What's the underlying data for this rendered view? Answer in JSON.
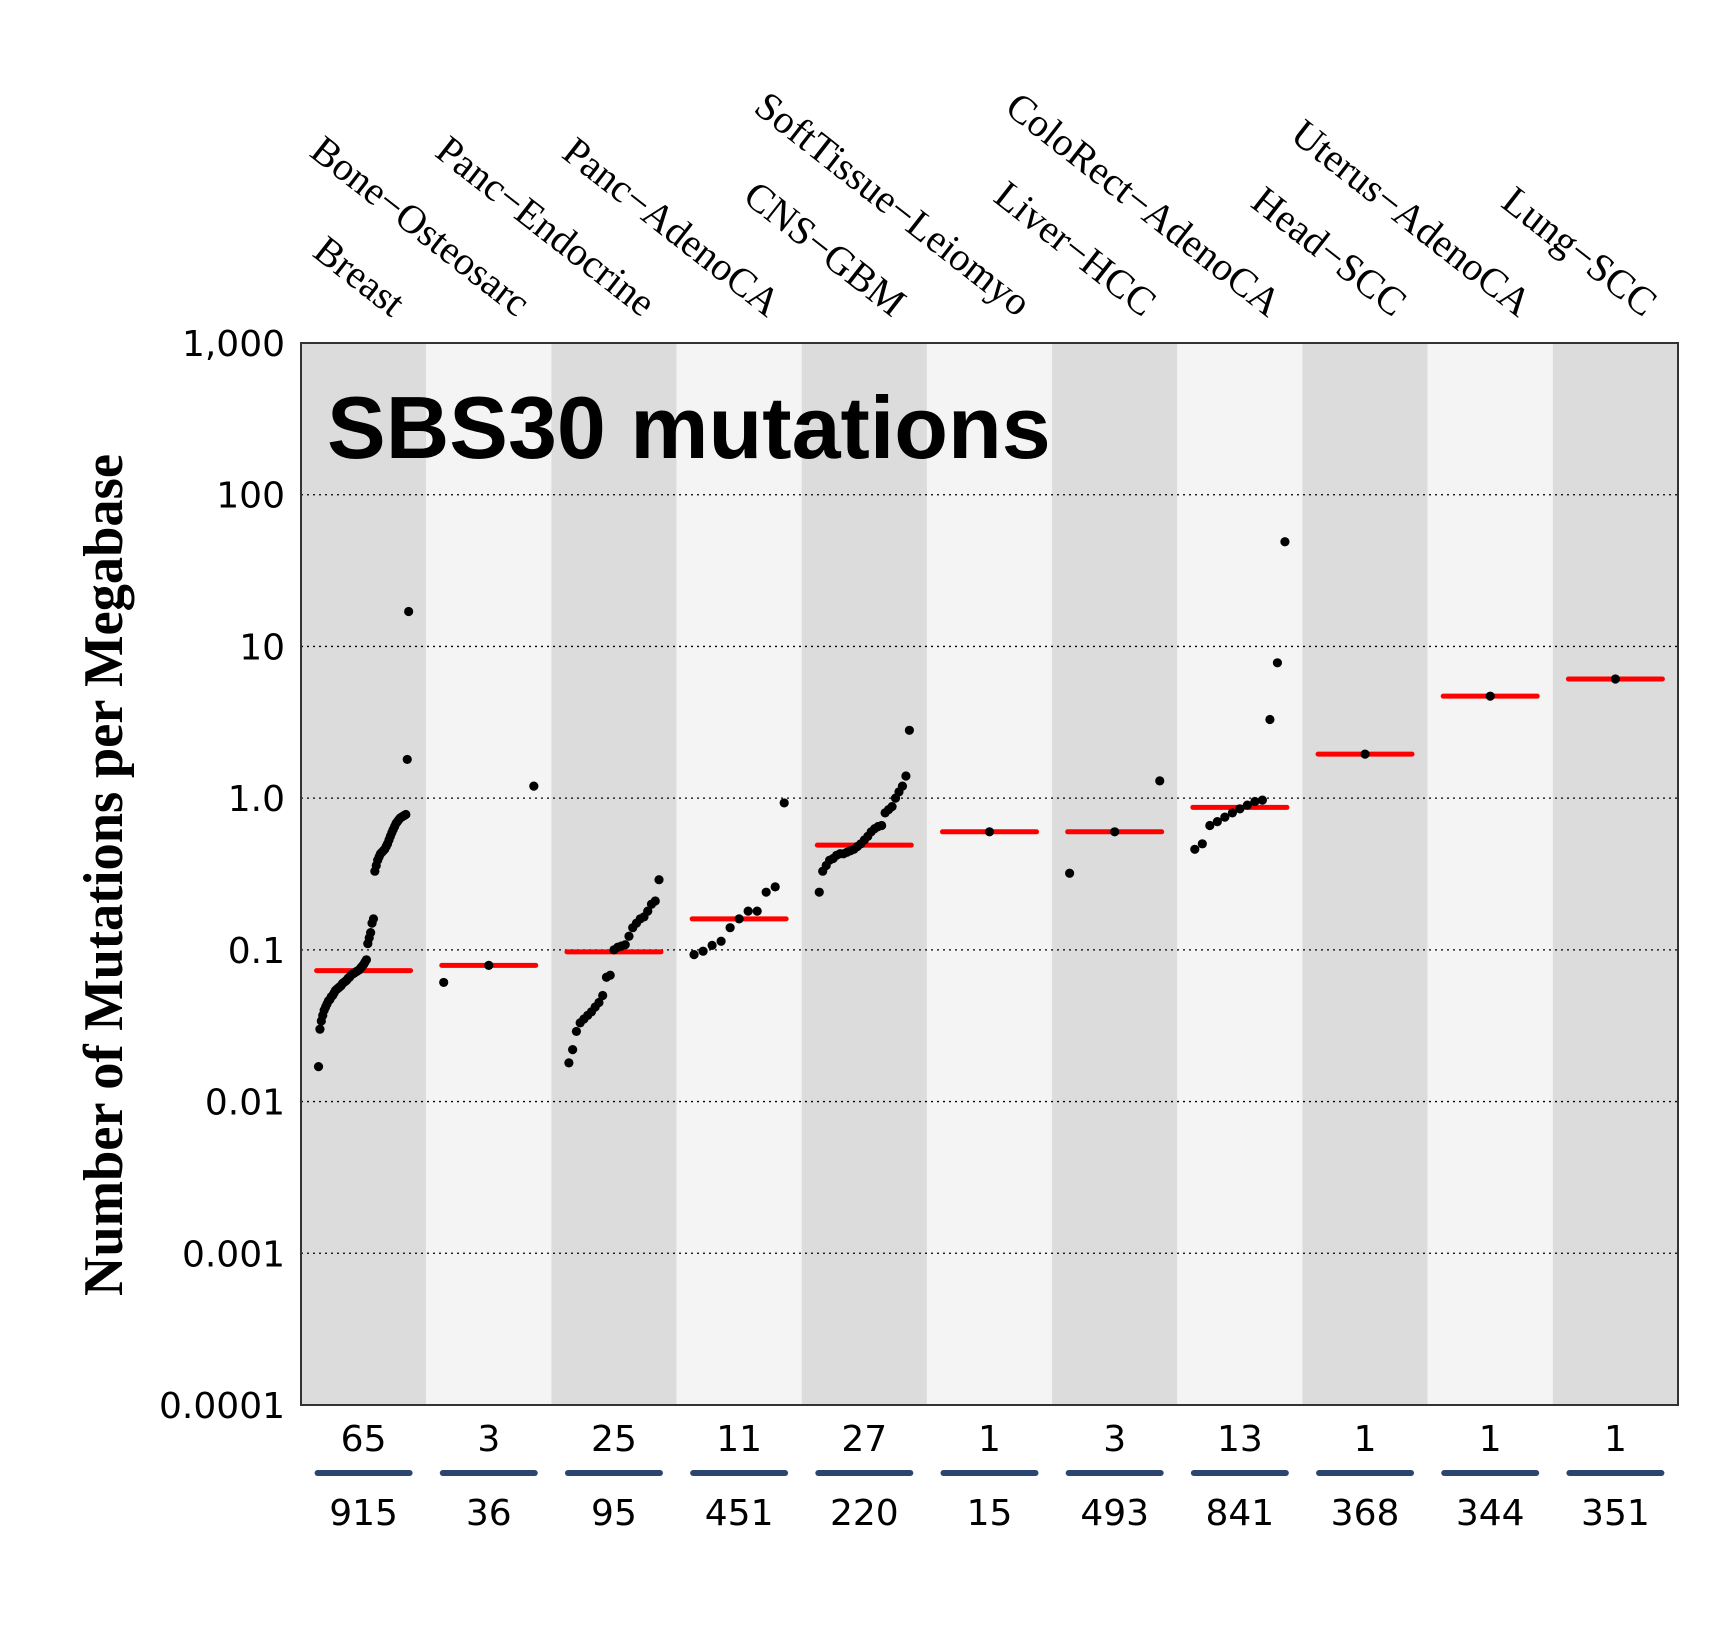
{
  "chart_data": {
    "type": "scatter",
    "title": "SBS30 mutations",
    "ylabel": "Number of Mutations per Megabase",
    "xlabel": "",
    "yscale": "log",
    "ylim": [
      0.0001,
      1000
    ],
    "yticks": [
      "0.0001",
      "0.001",
      "0.01",
      "0.1",
      "1.0",
      "10",
      "100",
      "1,000"
    ],
    "ytick_values": [
      0.0001,
      0.001,
      0.01,
      0.1,
      1,
      10,
      100,
      1000
    ],
    "grid": "horizontal dotted",
    "colors": {
      "band_dark": "#dcdcdc",
      "band_light": "#f4f4f4",
      "points": "#000000",
      "median": "#ff0000",
      "count_bar": "#2b4570"
    },
    "categories": [
      "Breast",
      "Bone−Osteosarc",
      "Panc−Endocrine",
      "Panc−AdenoCA",
      "CNS−GBM",
      "SoftTissue−Leiomyo",
      "Liver−HCC",
      "ColoRect−AdenoCA",
      "Head−SCC",
      "Uterus−AdenoCA",
      "Lung−SCC"
    ],
    "counts_with_signature": [
      "65",
      "3",
      "25",
      "11",
      "27",
      "1",
      "3",
      "13",
      "1",
      "1",
      "1"
    ],
    "total_samples": [
      "915",
      "36",
      "95",
      "451",
      "220",
      "15",
      "493",
      "841",
      "368",
      "344",
      "351"
    ],
    "medians": [
      0.073,
      0.079,
      0.097,
      0.16,
      0.49,
      0.6,
      0.6,
      0.87,
      1.95,
      4.7,
      6.1
    ],
    "values": [
      [
        0.017,
        0.03,
        0.034,
        0.037,
        0.04,
        0.042,
        0.044,
        0.046,
        0.047,
        0.049,
        0.05,
        0.052,
        0.054,
        0.055,
        0.056,
        0.057,
        0.058,
        0.06,
        0.061,
        0.062,
        0.063,
        0.065,
        0.066,
        0.068,
        0.069,
        0.07,
        0.071,
        0.072,
        0.073,
        0.074,
        0.076,
        0.078,
        0.08,
        0.083,
        0.086,
        0.11,
        0.12,
        0.13,
        0.15,
        0.16,
        0.33,
        0.36,
        0.39,
        0.41,
        0.43,
        0.44,
        0.45,
        0.46,
        0.48,
        0.5,
        0.53,
        0.56,
        0.59,
        0.62,
        0.65,
        0.68,
        0.7,
        0.72,
        0.74,
        0.75,
        0.76,
        0.77,
        0.78,
        1.8,
        17
      ],
      [
        0.061,
        0.079,
        1.2
      ],
      [
        0.018,
        0.022,
        0.029,
        0.033,
        0.035,
        0.037,
        0.039,
        0.042,
        0.045,
        0.05,
        0.066,
        0.068,
        0.1,
        0.104,
        0.106,
        0.108,
        0.123,
        0.14,
        0.15,
        0.16,
        0.165,
        0.18,
        0.2,
        0.21,
        0.29
      ],
      [
        0.093,
        0.098,
        0.107,
        0.114,
        0.14,
        0.16,
        0.18,
        0.18,
        0.24,
        0.26,
        0.93
      ],
      [
        0.24,
        0.33,
        0.36,
        0.39,
        0.4,
        0.42,
        0.43,
        0.43,
        0.44,
        0.45,
        0.46,
        0.48,
        0.5,
        0.53,
        0.56,
        0.6,
        0.63,
        0.65,
        0.66,
        0.8,
        0.84,
        0.88,
        1.0,
        1.1,
        1.2,
        1.4,
        2.8
      ],
      [
        0.6
      ],
      [
        0.32,
        0.6,
        1.3
      ],
      [
        0.46,
        0.5,
        0.66,
        0.7,
        0.75,
        0.8,
        0.85,
        0.9,
        0.95,
        0.97,
        3.3,
        7.8,
        49
      ],
      [
        1.95
      ],
      [
        4.7
      ],
      [
        6.1
      ]
    ]
  }
}
